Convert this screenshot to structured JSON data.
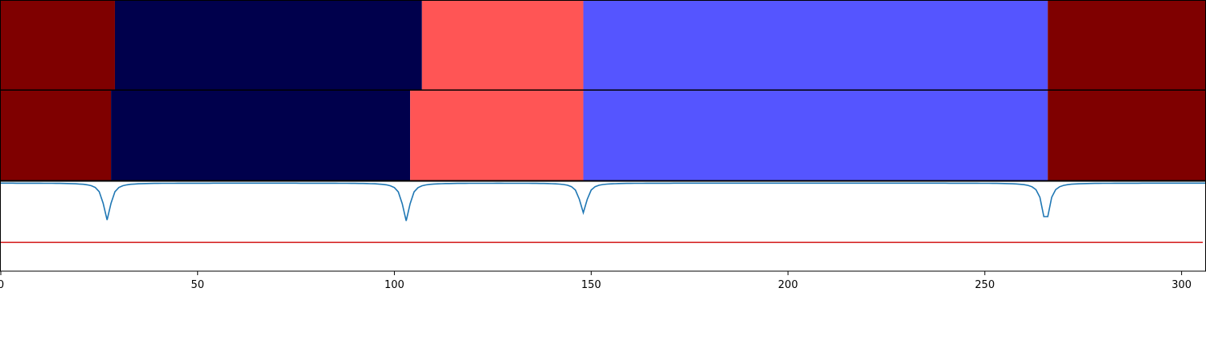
{
  "chart_data": [
    {
      "type": "heatmap",
      "panel": "top-segment-strip",
      "xlim": [
        0,
        306
      ],
      "segments": [
        {
          "start": 0,
          "end": 29,
          "color": "#7f0000"
        },
        {
          "start": 29,
          "end": 107,
          "color": "#00004c"
        },
        {
          "start": 107,
          "end": 148,
          "color": "#ff5555"
        },
        {
          "start": 148,
          "end": 266,
          "color": "#5555ff"
        },
        {
          "start": 266,
          "end": 306,
          "color": "#7f0000"
        }
      ]
    },
    {
      "type": "heatmap",
      "panel": "middle-segment-strip",
      "xlim": [
        0,
        306
      ],
      "segments": [
        {
          "start": 0,
          "end": 28,
          "color": "#7f0000"
        },
        {
          "start": 28,
          "end": 104,
          "color": "#00004c"
        },
        {
          "start": 104,
          "end": 148,
          "color": "#ff5555"
        },
        {
          "start": 148,
          "end": 266,
          "color": "#5555ff"
        },
        {
          "start": 266,
          "end": 306,
          "color": "#7f0000"
        }
      ]
    },
    {
      "type": "line",
      "panel": "bottom-signal",
      "xlim": [
        0,
        306
      ],
      "ylim": [
        -1.0,
        0.0
      ],
      "grid": false,
      "xticks": [
        0,
        50,
        100,
        150,
        200,
        250,
        300
      ],
      "xtick_labels": [
        "0",
        "50",
        "100",
        "150",
        "200",
        "250",
        "300"
      ],
      "series": [
        {
          "kind": "signal",
          "color": "#1f77b4",
          "dips": [
            {
              "center": 27,
              "depth": 0.41
            },
            {
              "center": 103,
              "depth": 0.42
            },
            {
              "center": 148,
              "depth": 0.33
            },
            {
              "center": 265.5,
              "depth": 0.45
            }
          ],
          "baseline": -0.02
        },
        {
          "kind": "threshold",
          "color": "#d62728",
          "value": -0.68
        }
      ]
    }
  ]
}
